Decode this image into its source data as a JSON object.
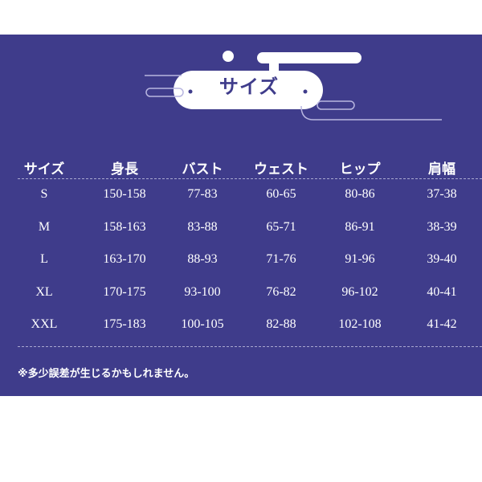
{
  "title": "サイズ",
  "colors": {
    "background": "#3f3c8b",
    "text": "#ffffff"
  },
  "table": {
    "headers": [
      "サイズ",
      "身長",
      "バスト",
      "ウェスト",
      "ヒップ",
      "肩幅"
    ],
    "rows": [
      [
        "S",
        "150-158",
        "77-83",
        "60-65",
        "80-86",
        "37-38"
      ],
      [
        "M",
        "158-163",
        "83-88",
        "65-71",
        "86-91",
        "38-39"
      ],
      [
        "L",
        "163-170",
        "88-93",
        "71-76",
        "91-96",
        "39-40"
      ],
      [
        "XL",
        "170-175",
        "93-100",
        "76-82",
        "96-102",
        "40-41"
      ],
      [
        "XXL",
        "175-183",
        "100-105",
        "82-88",
        "102-108",
        "41-42"
      ]
    ]
  },
  "note": "※多少誤差が生じるかもしれません。"
}
